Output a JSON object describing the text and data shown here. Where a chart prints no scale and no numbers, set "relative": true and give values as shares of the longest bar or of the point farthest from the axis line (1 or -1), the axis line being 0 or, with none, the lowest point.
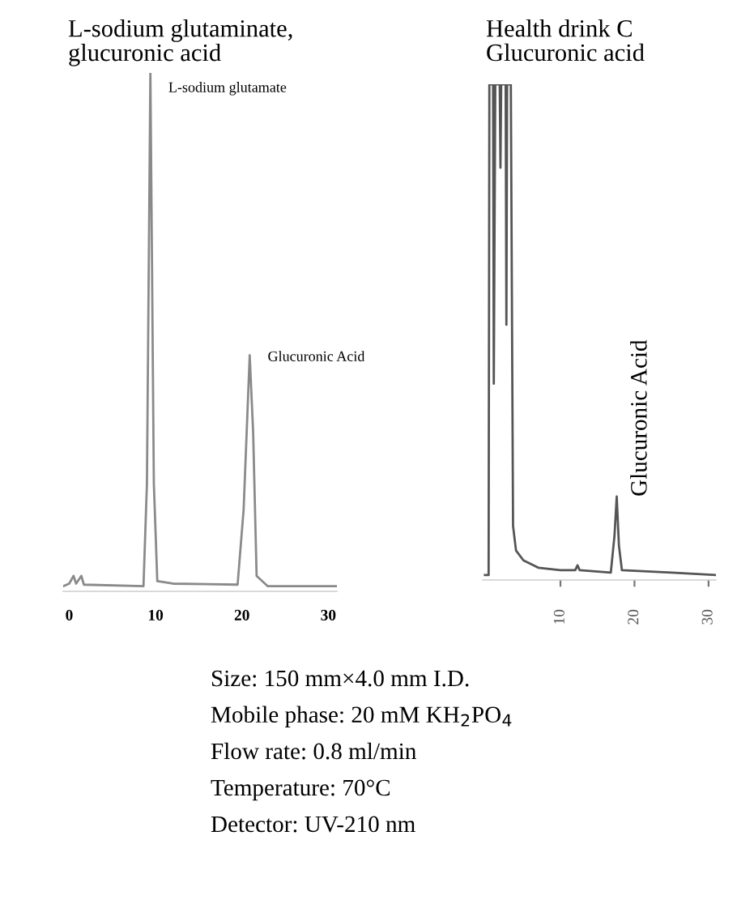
{
  "chart_data": [
    {
      "type": "line",
      "title": "L-sodium glutaminate,\nglucuronic acid",
      "relative": true,
      "color": "#8a8a8a",
      "x": [
        -0.7,
        0,
        0.5,
        0.8,
        1.4,
        1.7,
        8.6,
        9.0,
        9.4,
        9.8,
        10.2,
        12,
        19.5,
        20.2,
        20.9,
        21.3,
        21.7,
        23,
        31
      ],
      "values": [
        0,
        0.005,
        0.02,
        0.005,
        0.02,
        0.003,
        0,
        0.2,
        1,
        0.2,
        0.01,
        0.005,
        0.003,
        0.15,
        0.45,
        0.3,
        0.02,
        0,
        0
      ],
      "xlim": [
        -0.7,
        31
      ],
      "xticks": [
        0,
        10,
        20,
        30
      ],
      "grid": false,
      "legend": false,
      "annotations": [
        {
          "text": "L-sodium glutamate",
          "x": 9.4,
          "y": 1
        },
        {
          "text": "Glucuronic Acid",
          "x": 20.9,
          "y": 0.45
        }
      ]
    },
    {
      "type": "line",
      "title": "Health drink C\nGlucuronic acid",
      "relative": true,
      "color": "#555555",
      "x": [
        -0.2,
        0.3,
        0.4,
        0.9,
        1.0,
        1.2,
        1.8,
        1.9,
        2.0,
        2.6,
        2.7,
        2.8,
        3.3,
        3.6,
        4.0,
        5,
        7,
        10,
        12,
        12.3,
        12.6,
        16.8,
        17.3,
        17.6,
        17.9,
        18.3,
        25,
        31
      ],
      "values": [
        0,
        0,
        1,
        1,
        0.39,
        1,
        1,
        0.83,
        1,
        1,
        0.51,
        1,
        1,
        0.1,
        0.05,
        0.03,
        0.015,
        0.01,
        0.01,
        0.02,
        0.01,
        0.005,
        0.08,
        0.16,
        0.06,
        0.01,
        0.005,
        0
      ],
      "xlim": [
        -0.5,
        31
      ],
      "xticks": [
        10,
        20,
        30
      ],
      "grid": false,
      "legend": false,
      "annotations": [
        {
          "text": "Glucuronic Acid",
          "x": 17.6,
          "y": 0.16
        }
      ]
    },
    {
      "type": "other",
      "annotations": [
        "Size: 150 mm×4.0 mm I.D.",
        "Mobile phase: 20 mM KH$_{2}$PO$_{4}$",
        "Flow rate: 0.8 ml/min",
        "Temperature: 70°C",
        "Detector: UV-210 nm"
      ]
    }
  ]
}
